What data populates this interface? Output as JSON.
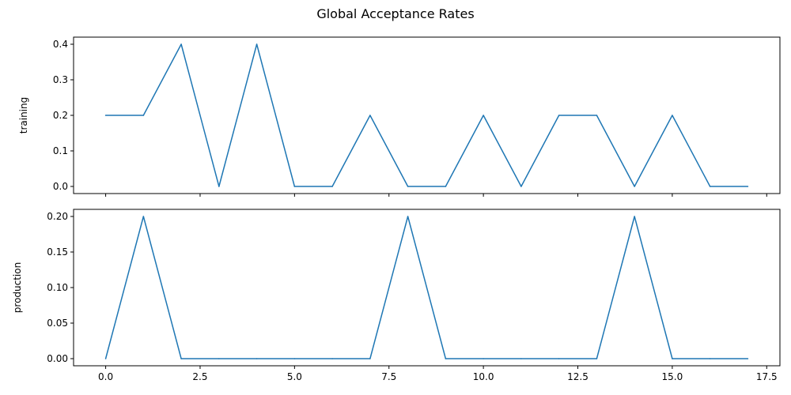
{
  "figure": {
    "title": "Global Acceptance Rates"
  },
  "chart_data": [
    {
      "type": "line",
      "title": "",
      "xlabel": "",
      "ylabel": "training",
      "x": [
        0,
        1,
        2,
        3,
        4,
        5,
        6,
        7,
        8,
        9,
        10,
        11,
        12,
        13,
        14,
        15,
        16,
        17
      ],
      "series": [
        {
          "values": [
            0.2,
            0.2,
            0.4,
            0.0,
            0.4,
            0.0,
            0.0,
            0.2,
            0.0,
            0.0,
            0.2,
            0.0,
            0.2,
            0.2,
            0.0,
            0.2,
            0.0,
            0.0
          ],
          "color": "#1f77b4"
        }
      ],
      "xlim": [
        -0.85,
        17.85
      ],
      "ylim": [
        -0.02,
        0.42
      ],
      "xticks": [
        0.0,
        2.5,
        5.0,
        7.5,
        10.0,
        12.5,
        15.0,
        17.5
      ],
      "xtick_labels_visible": false,
      "yticks": [
        0.0,
        0.1,
        0.2,
        0.3,
        0.4
      ],
      "ytick_labels": [
        "0.0",
        "0.1",
        "0.2",
        "0.3",
        "0.4"
      ],
      "grid": false,
      "legend": "none"
    },
    {
      "type": "line",
      "title": "",
      "xlabel": "",
      "ylabel": "production",
      "x": [
        0,
        1,
        2,
        3,
        4,
        5,
        6,
        7,
        8,
        9,
        10,
        11,
        12,
        13,
        14,
        15,
        16,
        17
      ],
      "series": [
        {
          "values": [
            0.0,
            0.2,
            0.0,
            0.0,
            0.0,
            0.0,
            0.0,
            0.0,
            0.2,
            0.0,
            0.0,
            0.0,
            0.0,
            0.0,
            0.2,
            0.0,
            0.0,
            0.0
          ],
          "color": "#1f77b4"
        }
      ],
      "xlim": [
        -0.85,
        17.85
      ],
      "ylim": [
        -0.01,
        0.21
      ],
      "xticks": [
        0.0,
        2.5,
        5.0,
        7.5,
        10.0,
        12.5,
        15.0,
        17.5
      ],
      "xtick_labels": [
        "0.0",
        "2.5",
        "5.0",
        "7.5",
        "10.0",
        "12.5",
        "15.0",
        "17.5"
      ],
      "xtick_labels_visible": true,
      "yticks": [
        0.0,
        0.05,
        0.1,
        0.15,
        0.2
      ],
      "ytick_labels": [
        "0.00",
        "0.05",
        "0.10",
        "0.15",
        "0.20"
      ],
      "grid": false,
      "legend": "none"
    }
  ]
}
